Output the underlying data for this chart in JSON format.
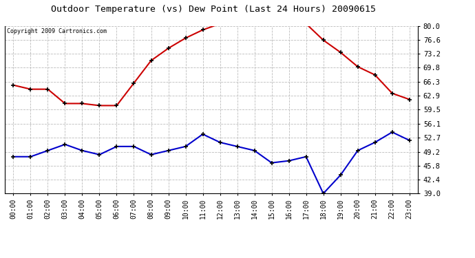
{
  "title": "Outdoor Temperature (vs) Dew Point (Last 24 Hours) 20090615",
  "copyright": "Copyright 2009 Cartronics.com",
  "hours": [
    "00:00",
    "01:00",
    "02:00",
    "03:00",
    "04:00",
    "05:00",
    "06:00",
    "07:00",
    "08:00",
    "09:00",
    "10:00",
    "11:00",
    "12:00",
    "13:00",
    "14:00",
    "15:00",
    "16:00",
    "17:00",
    "18:00",
    "19:00",
    "20:00",
    "21:00",
    "22:00",
    "23:00"
  ],
  "temp": [
    65.5,
    64.5,
    64.5,
    61.0,
    61.0,
    60.5,
    60.5,
    66.0,
    71.5,
    74.5,
    77.0,
    79.0,
    80.5,
    81.0,
    80.5,
    80.5,
    80.5,
    80.5,
    76.5,
    73.5,
    70.0,
    68.0,
    63.5,
    62.0
  ],
  "dew": [
    48.0,
    48.0,
    49.5,
    51.0,
    49.5,
    48.5,
    50.5,
    50.5,
    48.5,
    49.5,
    50.5,
    53.5,
    51.5,
    50.5,
    49.5,
    46.5,
    47.0,
    48.0,
    39.0,
    43.5,
    49.5,
    51.5,
    54.0,
    52.0
  ],
  "temp_color": "#cc0000",
  "dew_color": "#0000cc",
  "bg_color": "#ffffff",
  "grid_color": "#bbbbbb",
  "ylim_min": 39.0,
  "ylim_max": 80.0,
  "yticks": [
    39.0,
    42.4,
    45.8,
    49.2,
    52.7,
    56.1,
    59.5,
    62.9,
    66.3,
    69.8,
    73.2,
    76.6,
    80.0
  ]
}
